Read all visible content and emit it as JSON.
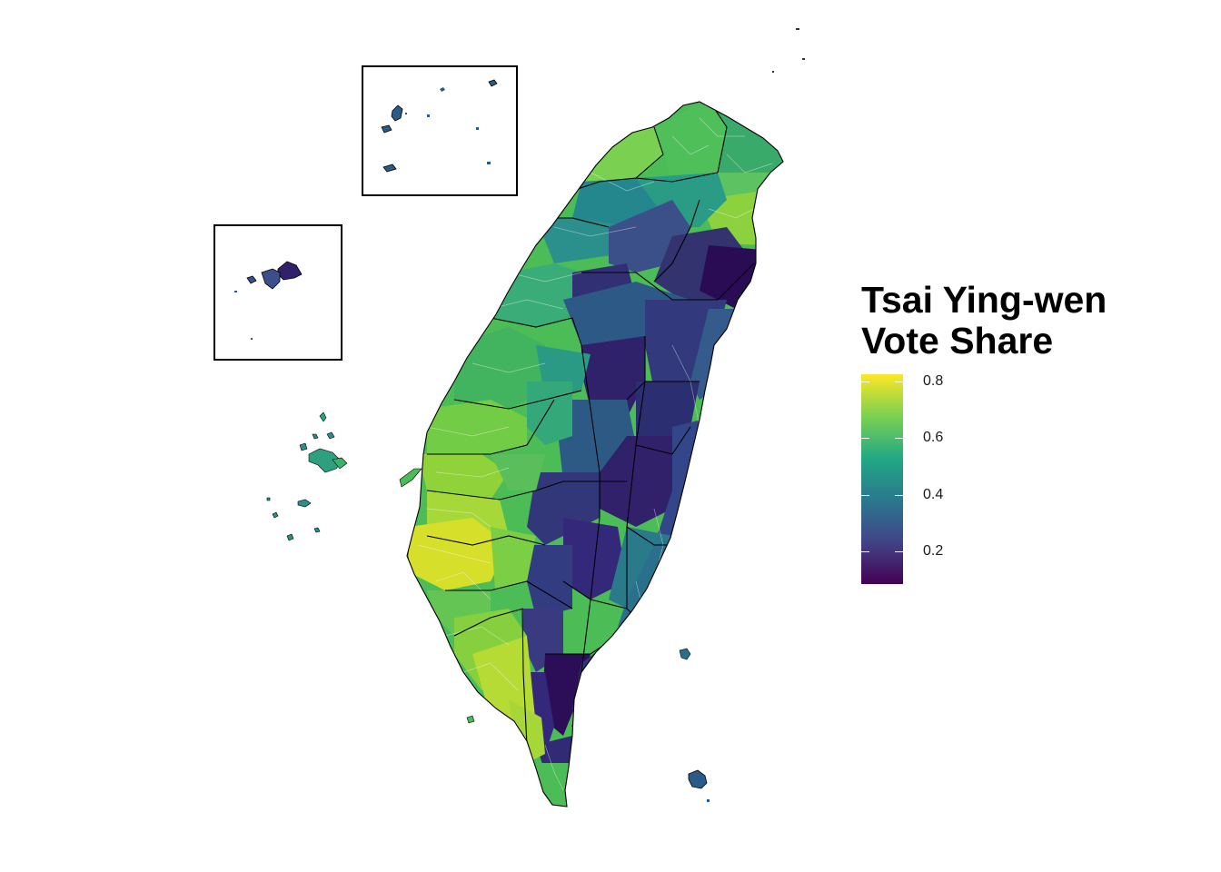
{
  "legend": {
    "title_line1": "Tsai Ying-wen",
    "title_line2": "Vote Share",
    "ticks": [
      "0.8",
      "0.6",
      "0.4",
      "0.2"
    ],
    "colorscale": "viridis",
    "stops": [
      "#fde725",
      "#7ad151",
      "#22a884",
      "#2a788e",
      "#414487",
      "#440154"
    ]
  },
  "map": {
    "region": "Taiwan",
    "insets": [
      "Matsu Islands",
      "Kinmen"
    ],
    "palette": {
      "very_high": "#d9e02a",
      "high": "#8cce3a",
      "mid_high": "#4cbc57",
      "mid": "#22a884",
      "mid_low": "#2a788e",
      "low": "#3b4f8a",
      "very_low": "#2e2c6e",
      "lowest": "#310b5a"
    },
    "county_border_color": "#000000",
    "township_border_color": "#ffffff"
  }
}
